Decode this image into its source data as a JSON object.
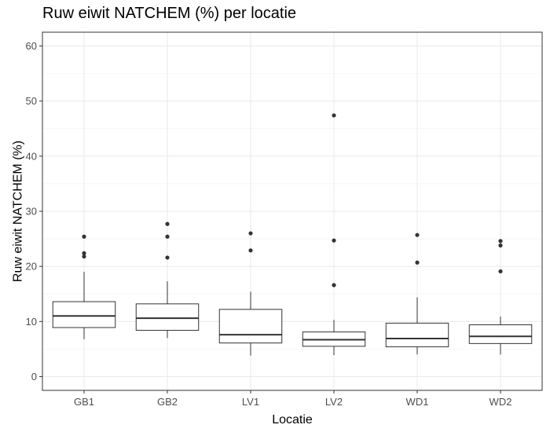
{
  "chart_data": {
    "type": "boxplot",
    "title": "Ruw eiwit NATCHEM (%) per locatie",
    "xlabel": "Locatie",
    "ylabel": "Ruw eiwit NATCHEM (%)",
    "ylim": [
      -2.5,
      62.5
    ],
    "yticks": [
      0,
      10,
      20,
      30,
      40,
      50,
      60
    ],
    "grid": true,
    "categories": [
      "GB1",
      "GB2",
      "LV1",
      "LV2",
      "WD1",
      "WD2"
    ],
    "boxes": [
      {
        "category": "GB1",
        "whisker_low": 6.8,
        "q1": 8.9,
        "median": 11.0,
        "q3": 13.6,
        "whisker_high": 19.0,
        "outliers": [
          25.4,
          22.4,
          21.8
        ]
      },
      {
        "category": "GB2",
        "whisker_low": 7.0,
        "q1": 8.4,
        "median": 10.6,
        "q3": 13.2,
        "whisker_high": 17.3,
        "outliers": [
          27.7,
          25.4,
          21.6
        ]
      },
      {
        "category": "LV1",
        "whisker_low": 3.8,
        "q1": 6.1,
        "median": 7.6,
        "q3": 12.2,
        "whisker_high": 15.4,
        "outliers": [
          26.0,
          22.9
        ]
      },
      {
        "category": "LV2",
        "whisker_low": 3.9,
        "q1": 5.5,
        "median": 6.7,
        "q3": 8.1,
        "whisker_high": 10.3,
        "outliers": [
          47.4,
          24.7,
          16.6
        ]
      },
      {
        "category": "WD1",
        "whisker_low": 4.0,
        "q1": 5.4,
        "median": 6.9,
        "q3": 9.7,
        "whisker_high": 14.4,
        "outliers": [
          25.7,
          20.7
        ]
      },
      {
        "category": "WD2",
        "whisker_low": 4.0,
        "q1": 6.0,
        "median": 7.3,
        "q3": 9.4,
        "whisker_high": 10.9,
        "outliers": [
          24.6,
          23.8,
          19.1
        ]
      }
    ]
  }
}
